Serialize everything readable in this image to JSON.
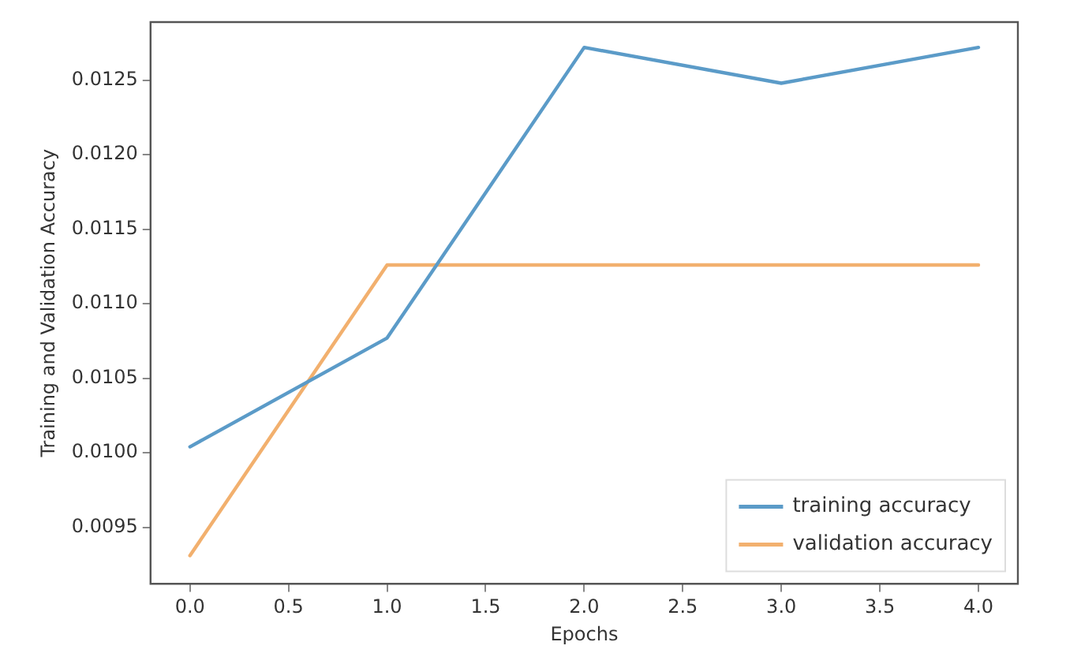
{
  "chart_data": {
    "type": "line",
    "xlabel": "Epochs",
    "ylabel": "Training and Validation Accuracy",
    "x": [
      0,
      1,
      2,
      3,
      4
    ],
    "series": [
      {
        "name": "training accuracy",
        "color": "#5b9bc8",
        "values": [
          0.01004,
          0.01077,
          0.01272,
          0.01248,
          0.01272
        ]
      },
      {
        "name": "validation accuracy",
        "color": "#f2b06e",
        "values": [
          0.00931,
          0.01126,
          0.01126,
          0.01126,
          0.01126
        ]
      }
    ],
    "xlim": [
      -0.2,
      4.2
    ],
    "xticks": [
      {
        "value": 0,
        "label": "0.0"
      },
      0.5,
      {
        "value": 1,
        "label": "1.0"
      },
      1.5,
      {
        "value": 2,
        "label": "2.0"
      },
      2.5,
      {
        "value": 3,
        "label": "3.0"
      },
      3.5,
      {
        "value": 4,
        "label": "4.0"
      }
    ],
    "ylim": [
      0.00912,
      0.01289
    ],
    "yticks": [
      0.0095,
      {
        "value": 0.01,
        "label": "0.0100"
      },
      0.0105,
      {
        "value": 0.011,
        "label": "0.0110"
      },
      0.0115,
      {
        "value": 0.012,
        "label": "0.0120"
      },
      0.0125
    ],
    "grid": false,
    "legend": "bottom right",
    "marker": "none",
    "line_style": "solid"
  }
}
